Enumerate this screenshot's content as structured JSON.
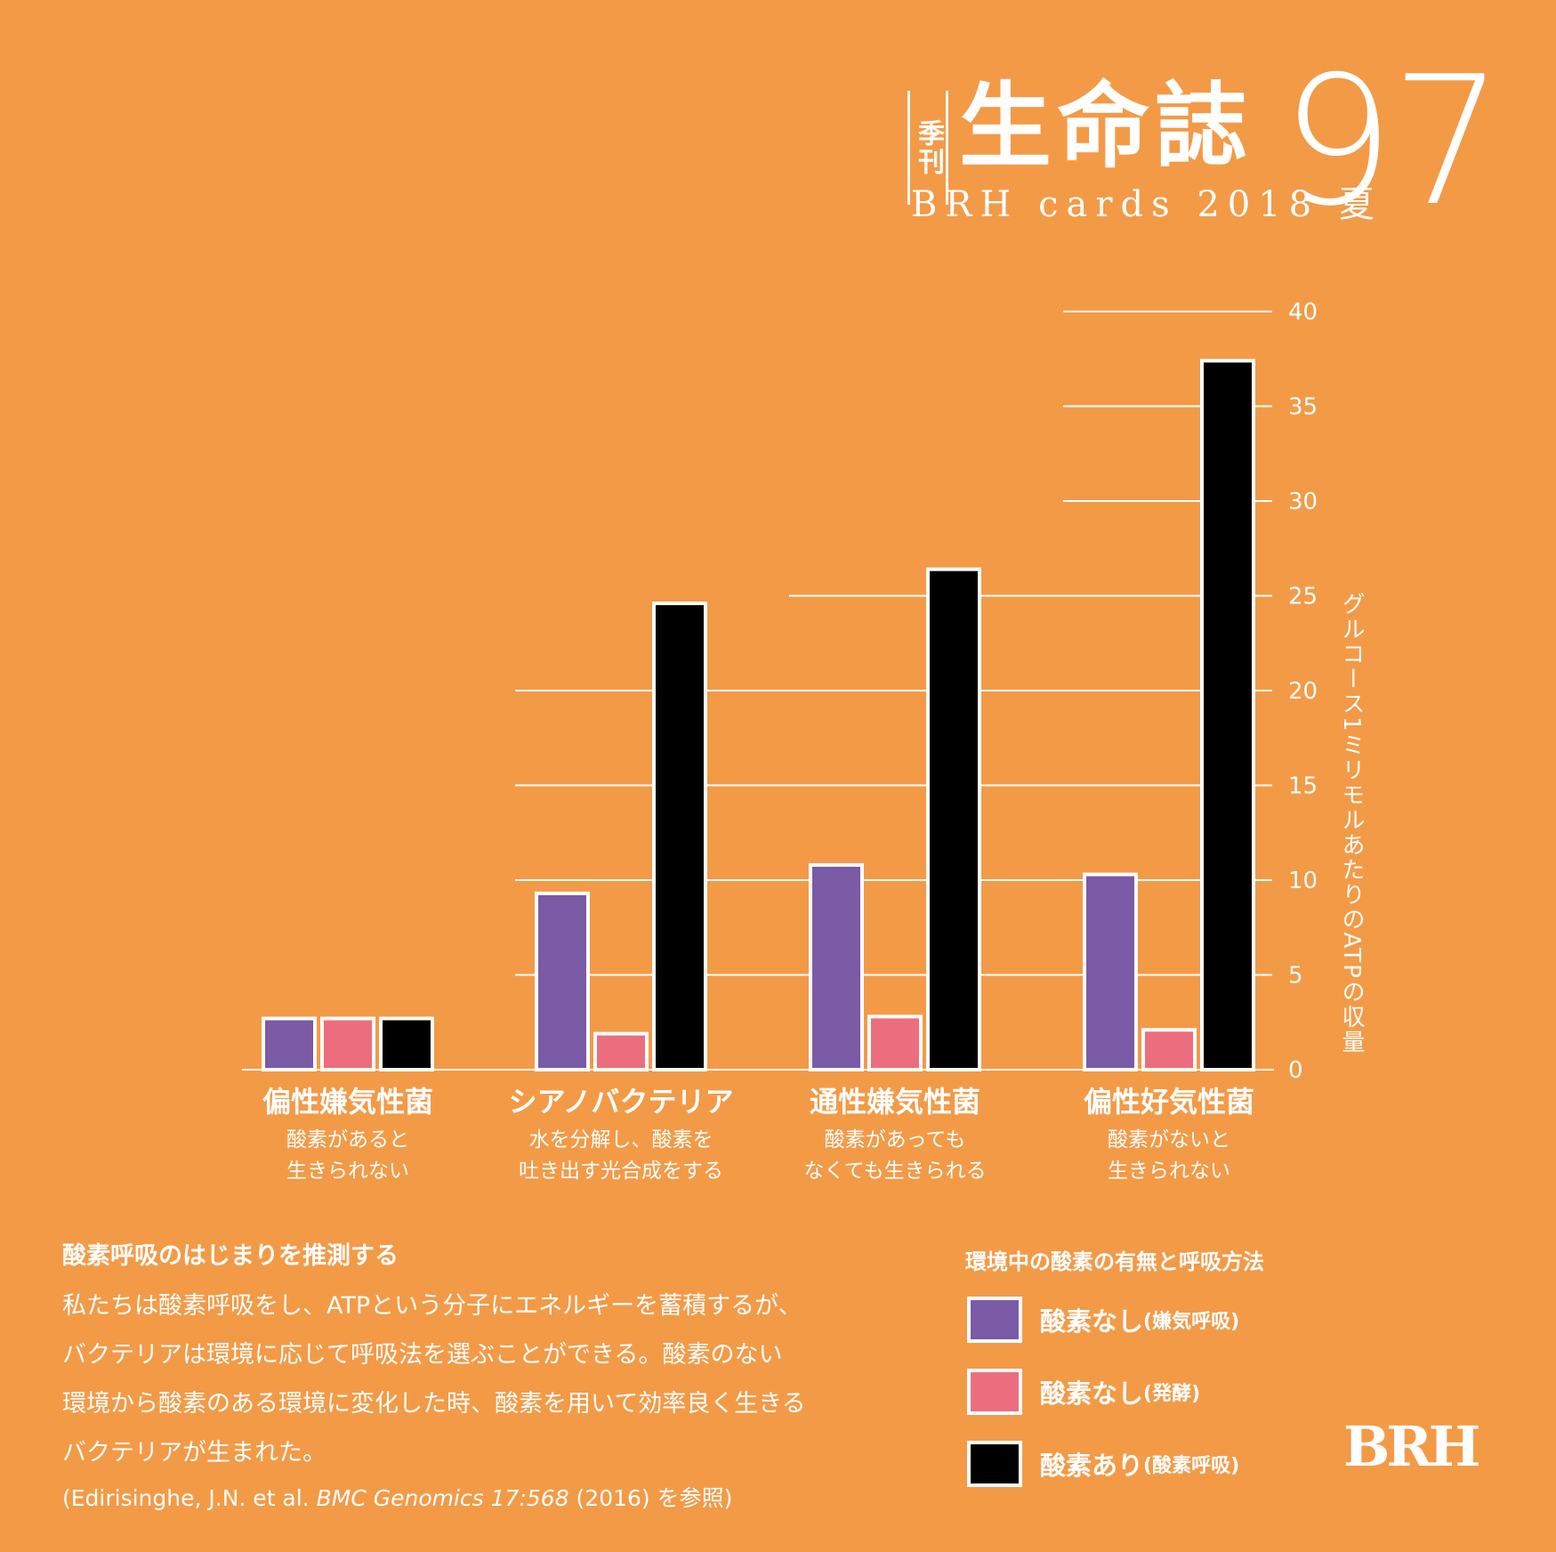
{
  "header": {
    "tag": "季刊",
    "title": "生命誌",
    "subtitle": "BRH cards 2018 夏",
    "issue": "97"
  },
  "colors": {
    "background": "#F39A47",
    "anaerobic": "#7B5AA6",
    "fermentation": "#EC6E7E",
    "aerobic": "#000000",
    "outline": "#FFFFFF"
  },
  "chart_data": {
    "type": "bar",
    "categories": [
      "偏性嫌気性菌",
      "シアノバクテリア",
      "通性嫌気性菌",
      "偏性好気性菌"
    ],
    "category_descriptions": [
      [
        "酸素があると",
        "生きられない"
      ],
      [
        "水を分解し、酸素を",
        "吐き出す光合成をする"
      ],
      [
        "酸素があっても",
        "なくても生きられる"
      ],
      [
        "酸素がないと",
        "生きられない"
      ]
    ],
    "series": [
      {
        "name": "酸素なし(嫌気呼吸)",
        "values": [
          2.7,
          9.3,
          10.8,
          10.3
        ]
      },
      {
        "name": "酸素なし(発酵)",
        "values": [
          2.7,
          1.9,
          2.8,
          2.1
        ]
      },
      {
        "name": "酸素あり(酸素呼吸)",
        "values": [
          2.7,
          24.6,
          26.4,
          37.4
        ]
      }
    ],
    "ylabel": "グルコース1ミリモルあたりのATPの収量",
    "yticks": [
      "0",
      "5",
      "10",
      "15",
      "20",
      "25",
      "30",
      "35",
      "40"
    ],
    "ylim": [
      0,
      40
    ],
    "grid": true,
    "legend_title": "環境中の酸素の有無と呼吸方法"
  },
  "legend": [
    {
      "label": "酸素なし",
      "note": "(嫌気呼吸)"
    },
    {
      "label": "酸素なし",
      "note": "(発酵)"
    },
    {
      "label": "酸素あり",
      "note": "(酸素呼吸)"
    }
  ],
  "note": {
    "heading": "酸素呼吸のはじまりを推測する",
    "lines": [
      "私たちは酸素呼吸をし、ATPという分子にエネルギーを蓄積するが、",
      "バクテリアは環境に応じて呼吸法を選ぶことができる。酸素のない",
      "環境から酸素のある環境に変化した時、酸素を用いて効率良く生きる",
      "バクテリアが生まれた。"
    ],
    "ref_prefix": "(Edirisinghe, J.N. et al. ",
    "ref_italic": "BMC Genomics 17:568",
    "ref_suffix": " (2016) を参照)"
  },
  "logo": "BRH"
}
